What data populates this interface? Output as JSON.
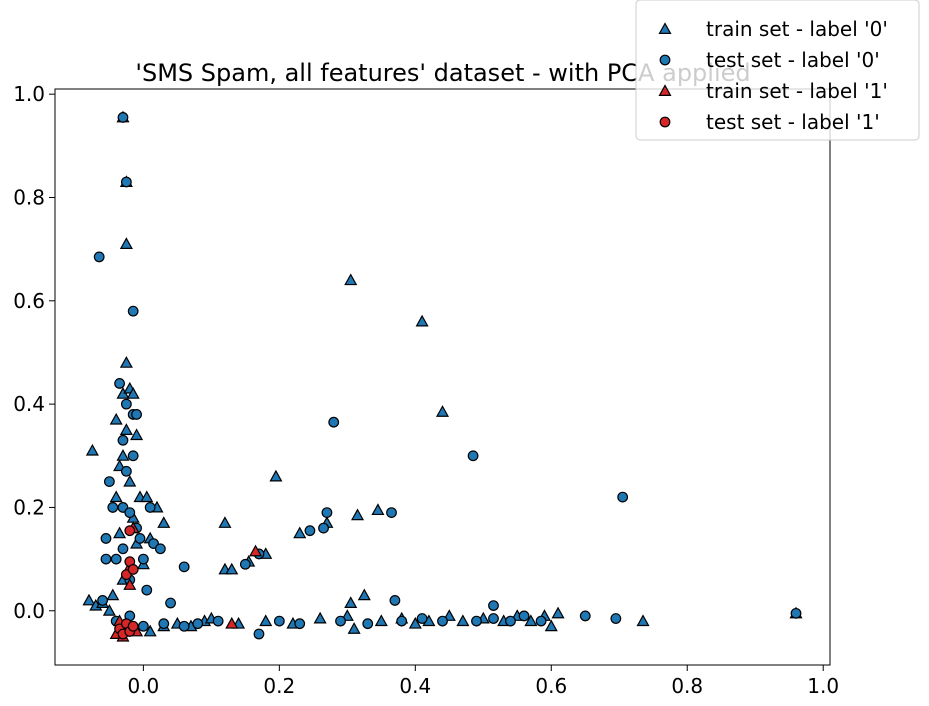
{
  "chart_data": {
    "type": "scatter",
    "title": "'SMS Spam, all features' dataset - with PCA applied",
    "xlabel": "",
    "ylabel": "",
    "xlim": [
      -0.13,
      1.01
    ],
    "ylim": [
      -0.105,
      1.01
    ],
    "x_ticks": [
      "0.0",
      "0.2",
      "0.4",
      "0.6",
      "0.8",
      "1.0"
    ],
    "y_ticks": [
      "0.0",
      "0.2",
      "0.4",
      "0.6",
      "0.8",
      "1.0"
    ],
    "grid": false,
    "legend_position": "top-right",
    "series": [
      {
        "name": "train set - label '0'",
        "marker": "triangle",
        "color": "#1f77b4",
        "points": [
          [
            -0.08,
            0.02
          ],
          [
            -0.075,
            0.31
          ],
          [
            -0.07,
            0.01
          ],
          [
            -0.06,
            0.015
          ],
          [
            -0.05,
            0.0
          ],
          [
            -0.045,
            0.03
          ],
          [
            -0.04,
            0.22
          ],
          [
            -0.04,
            0.37
          ],
          [
            -0.035,
            0.28
          ],
          [
            -0.035,
            0.15
          ],
          [
            -0.03,
            0.42
          ],
          [
            -0.03,
            0.3
          ],
          [
            -0.03,
            0.06
          ],
          [
            -0.025,
            0.71
          ],
          [
            -0.025,
            0.48
          ],
          [
            -0.025,
            0.35
          ],
          [
            -0.02,
            0.43
          ],
          [
            -0.02,
            0.25
          ],
          [
            -0.015,
            0.42
          ],
          [
            -0.015,
            0.18
          ],
          [
            -0.01,
            0.34
          ],
          [
            -0.01,
            0.13
          ],
          [
            -0.005,
            0.22
          ],
          [
            0.0,
            0.09
          ],
          [
            0.005,
            0.22
          ],
          [
            0.01,
            0.14
          ],
          [
            0.02,
            0.2
          ],
          [
            0.03,
            0.17
          ],
          [
            0.01,
            -0.04
          ],
          [
            0.03,
            -0.03
          ],
          [
            0.05,
            -0.025
          ],
          [
            0.07,
            -0.03
          ],
          [
            0.09,
            -0.02
          ],
          [
            0.1,
            -0.015
          ],
          [
            0.12,
            0.17
          ],
          [
            0.12,
            0.08
          ],
          [
            0.13,
            0.08
          ],
          [
            0.155,
            0.095
          ],
          [
            0.18,
            0.11
          ],
          [
            0.195,
            0.26
          ],
          [
            0.23,
            0.15
          ],
          [
            0.14,
            -0.025
          ],
          [
            0.18,
            -0.02
          ],
          [
            0.22,
            -0.025
          ],
          [
            0.26,
            -0.015
          ],
          [
            0.27,
            0.17
          ],
          [
            0.3,
            -0.01
          ],
          [
            0.305,
            0.64
          ],
          [
            0.305,
            0.015
          ],
          [
            0.31,
            -0.035
          ],
          [
            0.315,
            0.185
          ],
          [
            0.325,
            0.03
          ],
          [
            0.345,
            0.195
          ],
          [
            0.35,
            -0.02
          ],
          [
            0.38,
            -0.015
          ],
          [
            0.4,
            -0.025
          ],
          [
            0.41,
            0.56
          ],
          [
            0.42,
            -0.02
          ],
          [
            0.44,
            0.385
          ],
          [
            0.45,
            -0.01
          ],
          [
            0.47,
            -0.02
          ],
          [
            0.5,
            -0.015
          ],
          [
            0.53,
            -0.02
          ],
          [
            0.55,
            -0.01
          ],
          [
            0.57,
            -0.02
          ],
          [
            0.59,
            -0.01
          ],
          [
            0.6,
            -0.03
          ],
          [
            0.61,
            -0.005
          ],
          [
            0.735,
            -0.02
          ],
          [
            0.96,
            -0.005
          ],
          [
            -0.03,
            0.955
          ],
          [
            -0.025,
            0.83
          ]
        ]
      },
      {
        "name": "test set - label '0'",
        "marker": "circle",
        "color": "#1f77b4",
        "points": [
          [
            -0.065,
            0.685
          ],
          [
            -0.06,
            0.02
          ],
          [
            -0.055,
            0.14
          ],
          [
            -0.055,
            0.1
          ],
          [
            -0.05,
            0.25
          ],
          [
            -0.045,
            0.2
          ],
          [
            -0.04,
            0.1
          ],
          [
            -0.035,
            0.44
          ],
          [
            -0.03,
            0.33
          ],
          [
            -0.03,
            0.2
          ],
          [
            -0.03,
            0.12
          ],
          [
            -0.025,
            0.4
          ],
          [
            -0.025,
            0.27
          ],
          [
            -0.02,
            0.19
          ],
          [
            -0.02,
            0.06
          ],
          [
            -0.015,
            0.58
          ],
          [
            -0.015,
            0.38
          ],
          [
            -0.015,
            0.3
          ],
          [
            -0.01,
            0.38
          ],
          [
            -0.01,
            0.16
          ],
          [
            -0.005,
            0.14
          ],
          [
            0.0,
            0.1
          ],
          [
            0.005,
            0.04
          ],
          [
            0.01,
            0.2
          ],
          [
            0.015,
            0.13
          ],
          [
            0.025,
            0.12
          ],
          [
            0.04,
            0.015
          ],
          [
            0.06,
            0.085
          ],
          [
            0.03,
            -0.025
          ],
          [
            0.06,
            -0.03
          ],
          [
            0.08,
            -0.025
          ],
          [
            0.11,
            -0.02
          ],
          [
            0.15,
            0.09
          ],
          [
            0.17,
            0.11
          ],
          [
            0.17,
            -0.045
          ],
          [
            0.2,
            -0.02
          ],
          [
            0.23,
            -0.025
          ],
          [
            0.245,
            0.155
          ],
          [
            0.265,
            0.16
          ],
          [
            0.27,
            0.19
          ],
          [
            0.28,
            0.365
          ],
          [
            0.29,
            -0.02
          ],
          [
            0.33,
            -0.025
          ],
          [
            0.365,
            0.19
          ],
          [
            0.37,
            0.02
          ],
          [
            0.38,
            -0.02
          ],
          [
            0.41,
            -0.015
          ],
          [
            0.44,
            -0.02
          ],
          [
            0.485,
            0.3
          ],
          [
            0.49,
            -0.02
          ],
          [
            0.515,
            -0.015
          ],
          [
            0.515,
            0.01
          ],
          [
            0.54,
            -0.02
          ],
          [
            0.56,
            -0.01
          ],
          [
            0.585,
            -0.02
          ],
          [
            0.65,
            -0.01
          ],
          [
            0.695,
            -0.015
          ],
          [
            0.705,
            0.22
          ],
          [
            0.96,
            -0.005
          ],
          [
            -0.03,
            0.955
          ],
          [
            -0.025,
            0.83
          ],
          [
            -0.04,
            -0.02
          ],
          [
            -0.02,
            -0.01
          ],
          [
            0.0,
            -0.03
          ]
        ]
      },
      {
        "name": "train set - label '1'",
        "marker": "triangle",
        "color": "#d62728",
        "points": [
          [
            -0.04,
            -0.045
          ],
          [
            -0.035,
            -0.02
          ],
          [
            -0.03,
            -0.05
          ],
          [
            -0.025,
            -0.03
          ],
          [
            -0.02,
            0.05
          ],
          [
            -0.02,
            0.085
          ],
          [
            -0.015,
            0.16
          ],
          [
            -0.01,
            -0.04
          ],
          [
            0.13,
            -0.025
          ],
          [
            0.165,
            0.115
          ]
        ]
      },
      {
        "name": "test set - label '1'",
        "marker": "circle",
        "color": "#d62728",
        "points": [
          [
            -0.035,
            -0.035
          ],
          [
            -0.03,
            -0.045
          ],
          [
            -0.025,
            -0.025
          ],
          [
            -0.02,
            -0.04
          ],
          [
            -0.025,
            0.07
          ],
          [
            -0.02,
            0.095
          ],
          [
            -0.015,
            0.08
          ],
          [
            -0.02,
            0.155
          ],
          [
            -0.015,
            -0.03
          ]
        ]
      }
    ]
  }
}
